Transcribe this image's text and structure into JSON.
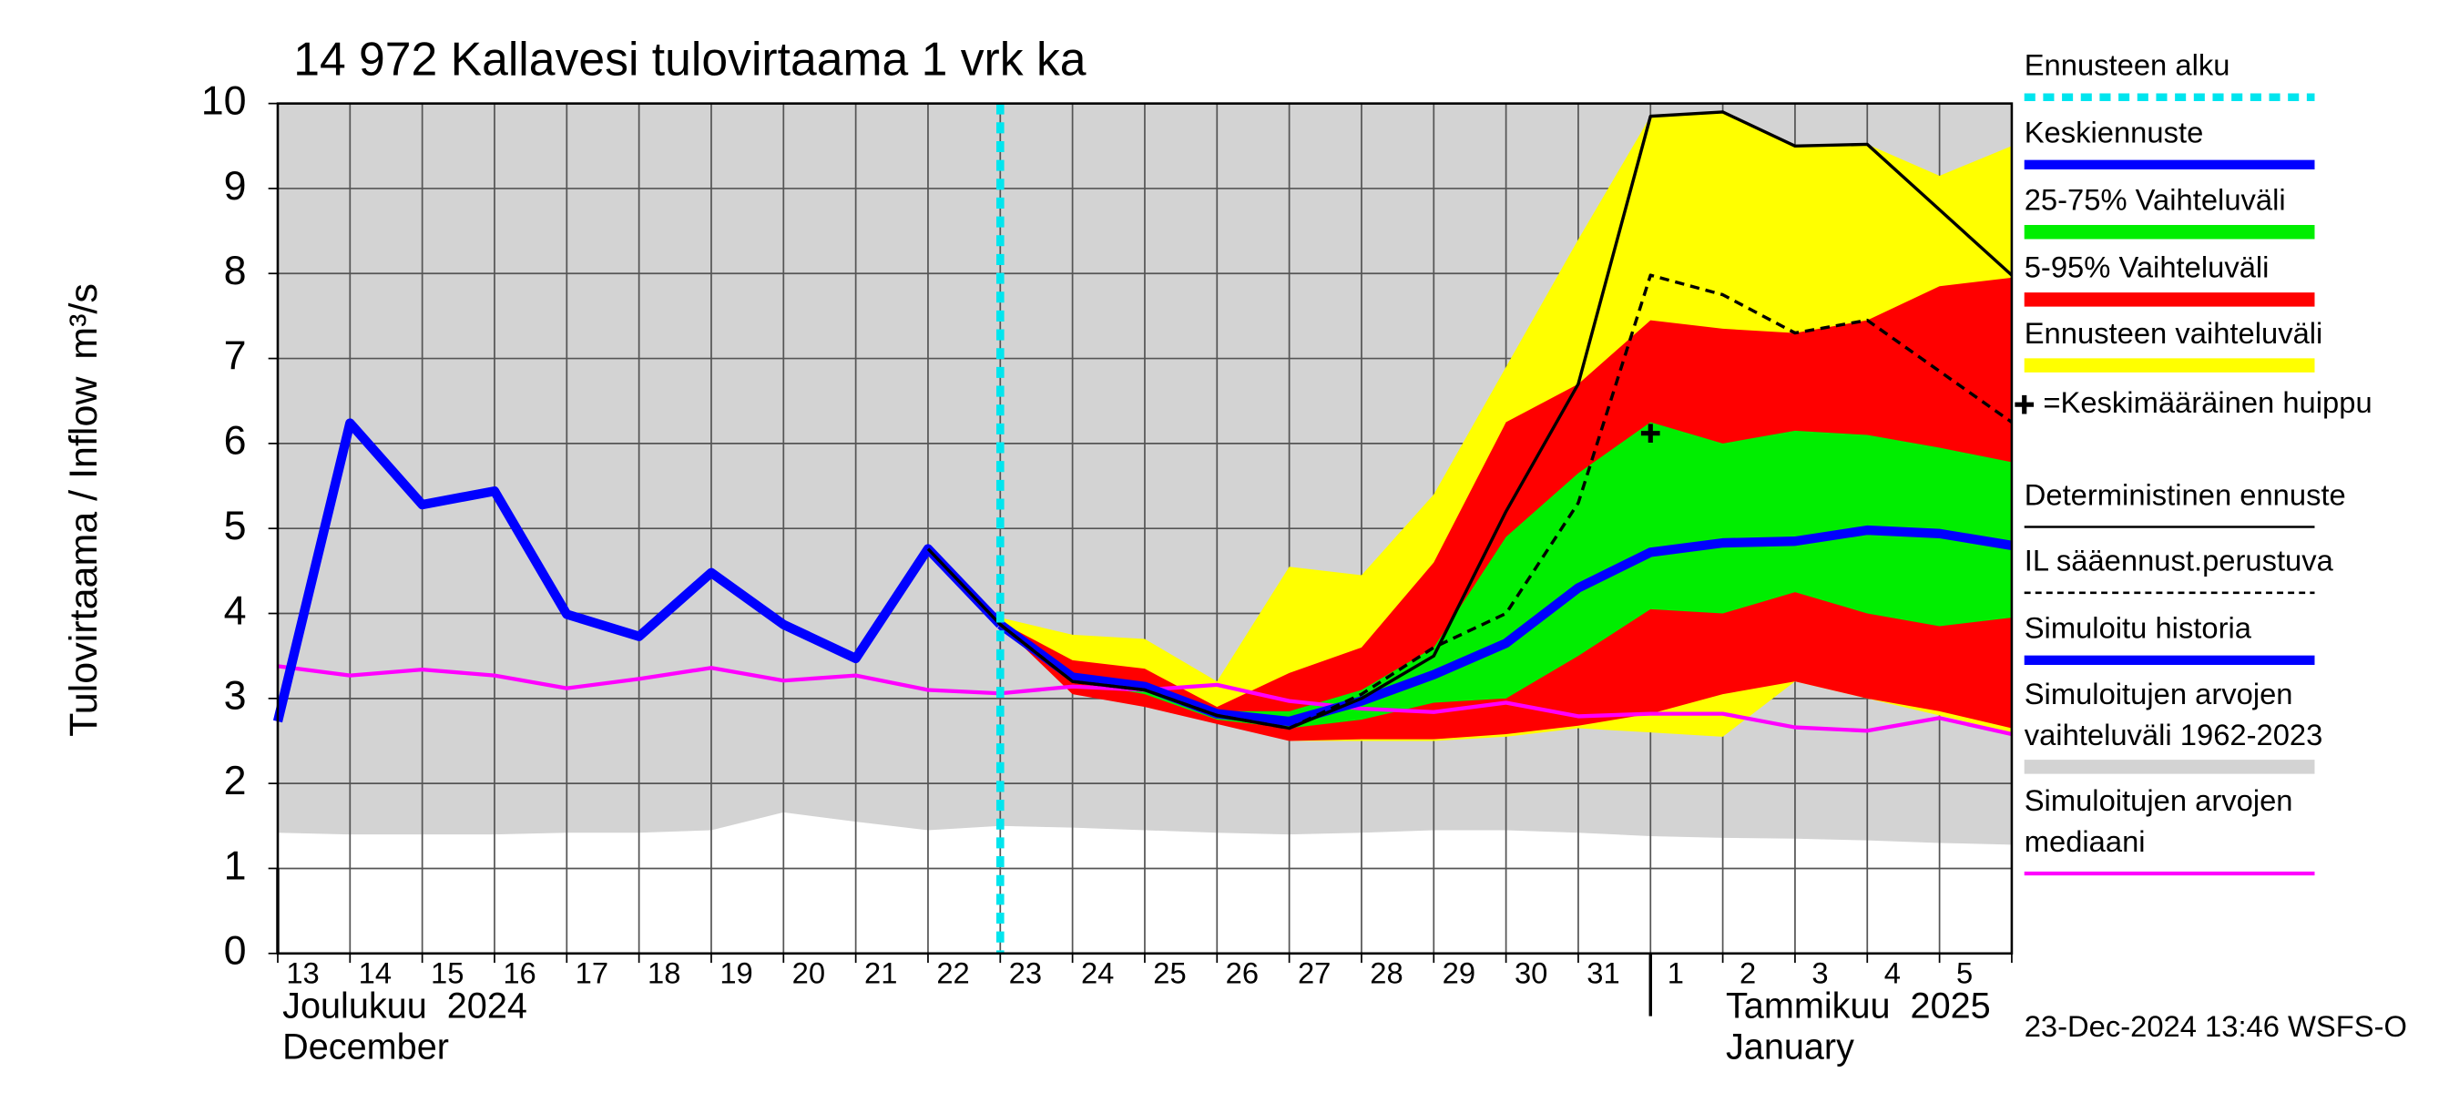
{
  "chart_data": {
    "type": "line",
    "title": "14 972 Kallavesi tulovirtaama 1 vrk ka",
    "ylabel": "Tulovirtaama / Inflow",
    "yunit": "m³/s",
    "categories": [
      "13",
      "14",
      "15",
      "16",
      "17",
      "18",
      "19",
      "20",
      "21",
      "22",
      "23",
      "24",
      "25",
      "26",
      "27",
      "28",
      "29",
      "30",
      "31",
      "1",
      "2",
      "3",
      "4",
      "5",
      null
    ],
    "x_group_labels": [
      [
        "Joulukuu  2024",
        "December"
      ],
      [
        "Tammikuu  2025",
        "January"
      ]
    ],
    "ylim": [
      0,
      10
    ],
    "yticks": [
      0,
      1,
      2,
      3,
      4,
      5,
      6,
      7,
      8,
      9,
      10
    ],
    "grid": true,
    "forecast_start": {
      "label": "Ennusteen alku",
      "x": 10,
      "color": "#00e5ee"
    },
    "peak": {
      "label": "=Keskimääräinen huippu",
      "x": 19,
      "y": 6.12
    },
    "timestamp": "23-Dec-2024 13:46 WSFS-O",
    "series": [
      {
        "name": "Keskiennuste",
        "color": "#0000ff",
        "style": "thick",
        "values": [
          null,
          null,
          null,
          null,
          null,
          null,
          null,
          null,
          null,
          null,
          3.87,
          3.25,
          3.14,
          2.82,
          2.73,
          2.97,
          3.28,
          3.65,
          4.3,
          4.72,
          4.83,
          4.85,
          4.98,
          4.94,
          4.8
        ]
      },
      {
        "name": "25-75% Vaihteluväli",
        "color": "#00ee00",
        "style": "band",
        "lower": [
          null,
          null,
          null,
          null,
          null,
          null,
          null,
          null,
          null,
          null,
          3.87,
          3.2,
          3.05,
          2.75,
          2.65,
          2.75,
          2.95,
          3.0,
          3.5,
          4.05,
          4.0,
          4.25,
          4.0,
          3.85,
          3.95
        ],
        "upper": [
          null,
          null,
          null,
          null,
          null,
          null,
          null,
          null,
          null,
          null,
          3.87,
          3.25,
          3.15,
          2.85,
          2.85,
          3.1,
          3.6,
          4.9,
          5.65,
          6.25,
          6.0,
          6.15,
          6.1,
          5.95,
          5.78
        ]
      },
      {
        "name": "5-95% Vaihteluväli",
        "color": "#ff0000",
        "style": "band",
        "lower": [
          null,
          null,
          null,
          null,
          null,
          null,
          null,
          null,
          null,
          null,
          3.87,
          3.05,
          2.9,
          2.7,
          2.5,
          2.52,
          2.52,
          2.58,
          2.68,
          2.82,
          3.05,
          3.2,
          3.0,
          2.85,
          2.65
        ],
        "upper": [
          null,
          null,
          null,
          null,
          null,
          null,
          null,
          null,
          null,
          null,
          3.9,
          3.45,
          3.35,
          2.9,
          3.3,
          3.6,
          4.6,
          6.25,
          6.7,
          7.45,
          7.35,
          7.3,
          7.45,
          7.85,
          7.95
        ]
      },
      {
        "name": "Ennusteen vaihteluväli",
        "color": "#ffff00",
        "style": "band",
        "lower": [
          null,
          null,
          null,
          null,
          null,
          null,
          null,
          null,
          null,
          null,
          3.87,
          3.1,
          2.95,
          2.75,
          2.5,
          2.5,
          2.5,
          2.55,
          2.65,
          2.6,
          2.55,
          3.2,
          3.0,
          2.8,
          2.6
        ],
        "upper": [
          null,
          null,
          null,
          null,
          null,
          null,
          null,
          null,
          null,
          null,
          3.95,
          3.75,
          3.7,
          3.2,
          4.55,
          4.45,
          5.4,
          6.9,
          8.4,
          9.85,
          9.9,
          9.5,
          9.52,
          9.15,
          9.5
        ]
      },
      {
        "name": "Deterministinen ennuste",
        "color": "#000000",
        "style": "thin",
        "values": [
          null,
          null,
          null,
          null,
          null,
          null,
          null,
          null,
          null,
          4.76,
          3.87,
          3.2,
          3.1,
          2.8,
          2.65,
          3.0,
          3.5,
          5.2,
          6.7,
          9.85,
          9.9,
          9.5,
          9.52,
          8.75,
          7.98
        ]
      },
      {
        "name": "IL sääennust.perustuva",
        "color": "#000000",
        "style": "dashed",
        "values": [
          null,
          null,
          null,
          null,
          null,
          null,
          null,
          null,
          null,
          null,
          3.87,
          3.2,
          3.1,
          2.8,
          2.65,
          3.05,
          3.6,
          4.0,
          5.3,
          7.98,
          7.75,
          7.3,
          7.45,
          6.85,
          6.25
        ]
      },
      {
        "name": "Simuloitu historia",
        "color": "#0000ff",
        "style": "thick",
        "values": [
          2.73,
          6.24,
          5.28,
          5.44,
          3.99,
          3.73,
          4.48,
          3.87,
          3.47,
          4.76,
          3.87,
          null,
          null,
          null,
          null,
          null,
          null,
          null,
          null,
          null,
          null,
          null,
          null,
          null,
          null
        ]
      },
      {
        "name": "Simuloitujen arvojen vaihteluväli 1962-2023",
        "color": "#d3d3d3",
        "style": "band",
        "lower": [
          1.42,
          1.4,
          1.4,
          1.4,
          1.42,
          1.42,
          1.45,
          1.66,
          1.55,
          1.45,
          1.5,
          1.48,
          1.45,
          1.42,
          1.4,
          1.42,
          1.45,
          1.45,
          1.42,
          1.38,
          1.36,
          1.35,
          1.33,
          1.3,
          1.28
        ],
        "upper": [
          10,
          10,
          10,
          10,
          10,
          10,
          10,
          10,
          10,
          10,
          10,
          10,
          10,
          10,
          10,
          10,
          10,
          10,
          10,
          10,
          10,
          10,
          10,
          10,
          10
        ]
      },
      {
        "name": "Simuloitujen arvojen mediaani",
        "color": "#ff00ff",
        "style": "median",
        "values": [
          3.38,
          3.27,
          3.34,
          3.27,
          3.12,
          3.23,
          3.36,
          3.21,
          3.27,
          3.1,
          3.06,
          3.14,
          3.1,
          3.16,
          2.97,
          2.88,
          2.84,
          2.95,
          2.79,
          2.82,
          2.82,
          2.66,
          2.62,
          2.77,
          2.58
        ]
      }
    ]
  }
}
